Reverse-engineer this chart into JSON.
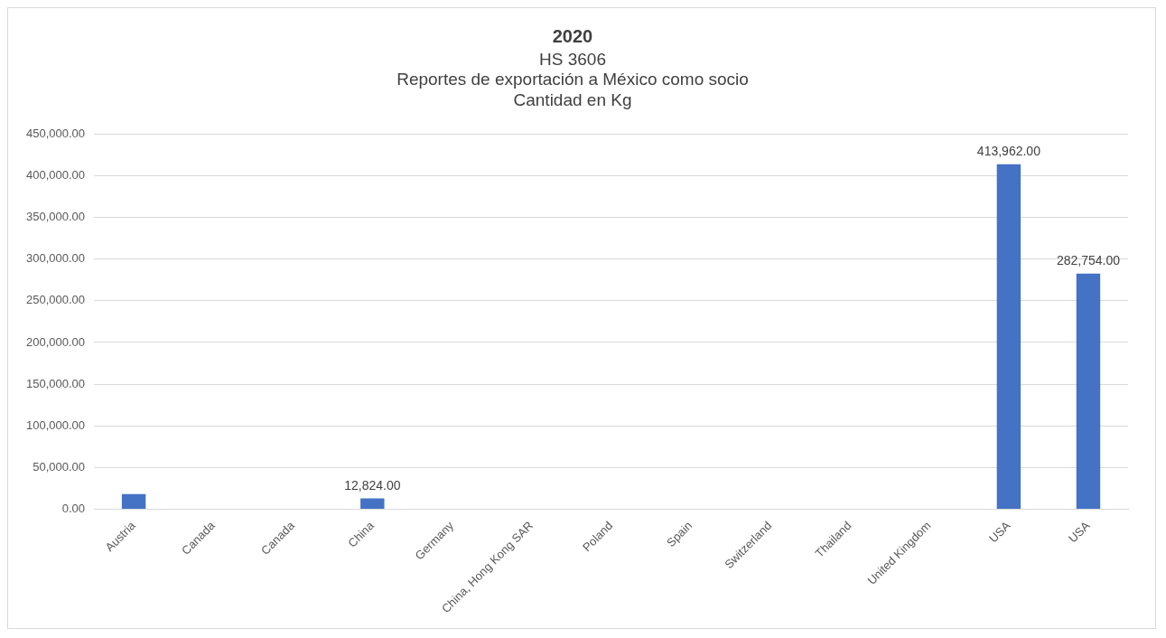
{
  "chart_data": {
    "type": "bar",
    "title": "2020",
    "subtitle": "HS 3606\nReportes de exportación a México como socio\nCantidad en Kg",
    "categories": [
      "Austria",
      "Canada",
      "Canada",
      "China",
      "Germany",
      "China, Hong Kong SAR",
      "Poland",
      "Spain",
      "Switzerland",
      "Thailand",
      "United Kingdom",
      "USA",
      "USA"
    ],
    "values": [
      18000,
      0,
      0,
      12824,
      0,
      0,
      0,
      0,
      0,
      0,
      0,
      413962,
      282754
    ],
    "value_labels": [
      null,
      null,
      null,
      "12,824.00",
      null,
      null,
      null,
      null,
      null,
      null,
      null,
      "413,962.00",
      "282,754.00"
    ],
    "color": "#4472c4",
    "ylim": [
      0,
      450000
    ],
    "yticks": [
      {
        "value": 0,
        "label": "0.00"
      },
      {
        "value": 50000,
        "label": "50,000.00"
      },
      {
        "value": 100000,
        "label": "100,000.00"
      },
      {
        "value": 150000,
        "label": "150,000.00"
      },
      {
        "value": 200000,
        "label": "200,000.00"
      },
      {
        "value": 250000,
        "label": "250,000.00"
      },
      {
        "value": 300000,
        "label": "300,000.00"
      },
      {
        "value": 350000,
        "label": "350,000.00"
      },
      {
        "value": 400000,
        "label": "400,000.00"
      },
      {
        "value": 450000,
        "label": "450,000.00"
      }
    ],
    "grid": "y",
    "legend": false
  }
}
